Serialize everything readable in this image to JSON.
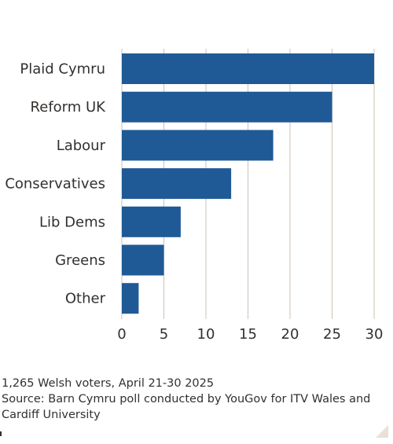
{
  "chart_data": {
    "type": "bar",
    "orientation": "horizontal",
    "categories": [
      "Plaid Cymru",
      "Reform UK",
      "Labour",
      "Conservatives",
      "Lib Dems",
      "Greens",
      "Other"
    ],
    "values": [
      30,
      25,
      18,
      13,
      7,
      5,
      2
    ],
    "xlim": [
      0,
      30
    ],
    "xticks": [
      0,
      5,
      10,
      15,
      20,
      25,
      30
    ],
    "grid": true,
    "bar_color": "#1f5a96",
    "grid_color": "#ccc1b7"
  },
  "footer": {
    "note": "1,265 Welsh voters, April 21-30 2025",
    "source": "Source: Barn Cymru poll conducted by YouGov for ITV Wales and Cardiff University"
  }
}
